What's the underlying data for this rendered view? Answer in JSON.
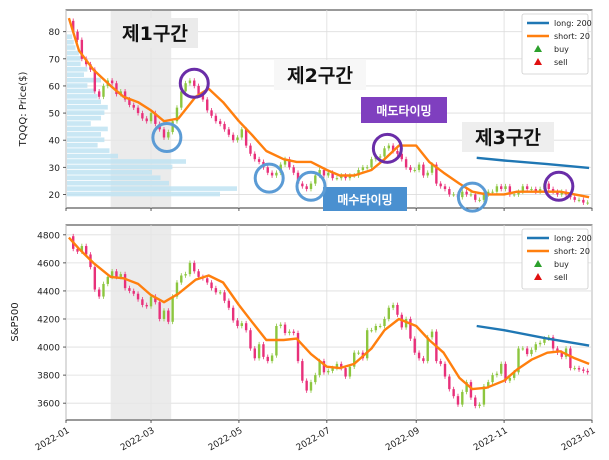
{
  "chart_data": [
    {
      "type": "line",
      "ylabel": "TQQQ: Price($)",
      "xlim": [
        "2022-01-01",
        "2023-01-01"
      ],
      "ylim": [
        15,
        88
      ],
      "yticks": [
        20,
        30,
        40,
        50,
        60,
        70,
        80
      ],
      "grid": true,
      "legend": {
        "placement": "top-right",
        "entries": [
          "long: 200",
          "short: 20",
          "buy",
          "sell"
        ]
      },
      "series": [
        {
          "name": "long: 200",
          "color": "#1f77b4",
          "x": [
            "2022-10-13",
            "2022-11-01",
            "2022-12-01",
            "2022-12-30"
          ],
          "values": [
            33.5,
            32.5,
            31.2,
            29.8
          ]
        },
        {
          "name": "short: 20",
          "color": "#ff7f0e",
          "x": [
            "2022-01-03",
            "2022-01-10",
            "2022-01-20",
            "2022-02-01",
            "2022-02-10",
            "2022-02-20",
            "2022-03-01",
            "2022-03-10",
            "2022-03-20",
            "2022-04-01",
            "2022-04-10",
            "2022-04-20",
            "2022-05-01",
            "2022-05-10",
            "2022-05-20",
            "2022-06-01",
            "2022-06-10",
            "2022-06-20",
            "2022-07-01",
            "2022-07-10",
            "2022-07-20",
            "2022-08-01",
            "2022-08-10",
            "2022-08-20",
            "2022-09-01",
            "2022-09-10",
            "2022-09-20",
            "2022-10-01",
            "2022-10-10",
            "2022-10-20",
            "2022-11-01",
            "2022-11-10",
            "2022-11-20",
            "2022-12-01",
            "2022-12-10",
            "2022-12-20",
            "2022-12-30"
          ],
          "values": [
            85,
            73,
            66,
            60,
            56,
            54,
            51,
            47,
            48,
            56,
            59,
            54,
            47,
            42,
            36,
            33,
            32,
            32,
            29,
            27,
            27,
            29,
            33,
            38,
            38,
            32,
            28,
            24,
            21,
            20,
            20,
            21,
            21,
            21,
            21,
            20,
            19
          ]
        }
      ],
      "price": {
        "color_up": "#8cc63f",
        "color_down": "#e8307a",
        "x": [
          "2022-01-03",
          "2022-01-06",
          "2022-01-09",
          "2022-01-12",
          "2022-01-15",
          "2022-01-18",
          "2022-01-21",
          "2022-01-24",
          "2022-01-27",
          "2022-01-30",
          "2022-02-02",
          "2022-02-05",
          "2022-02-08",
          "2022-02-11",
          "2022-02-14",
          "2022-02-17",
          "2022-02-20",
          "2022-02-23",
          "2022-02-26",
          "2022-03-01",
          "2022-03-04",
          "2022-03-07",
          "2022-03-10",
          "2022-03-13",
          "2022-03-16",
          "2022-03-19",
          "2022-03-22",
          "2022-03-25",
          "2022-03-28",
          "2022-03-31",
          "2022-04-03",
          "2022-04-06",
          "2022-04-09",
          "2022-04-12",
          "2022-04-15",
          "2022-04-18",
          "2022-04-21",
          "2022-04-24",
          "2022-04-27",
          "2022-04-30",
          "2022-05-03",
          "2022-05-06",
          "2022-05-09",
          "2022-05-12",
          "2022-05-15",
          "2022-05-18",
          "2022-05-21",
          "2022-05-24",
          "2022-05-27",
          "2022-05-30",
          "2022-06-02",
          "2022-06-05",
          "2022-06-08",
          "2022-06-11",
          "2022-06-14",
          "2022-06-17",
          "2022-06-20",
          "2022-06-23",
          "2022-06-26",
          "2022-06-29",
          "2022-07-02",
          "2022-07-05",
          "2022-07-08",
          "2022-07-11",
          "2022-07-14",
          "2022-07-17",
          "2022-07-20",
          "2022-07-23",
          "2022-07-26",
          "2022-07-29",
          "2022-08-01",
          "2022-08-04",
          "2022-08-07",
          "2022-08-10",
          "2022-08-13",
          "2022-08-16",
          "2022-08-19",
          "2022-08-22",
          "2022-08-25",
          "2022-08-28",
          "2022-08-31",
          "2022-09-03",
          "2022-09-06",
          "2022-09-09",
          "2022-09-12",
          "2022-09-15",
          "2022-09-18",
          "2022-09-21",
          "2022-09-24",
          "2022-09-27",
          "2022-09-30",
          "2022-10-03",
          "2022-10-06",
          "2022-10-09",
          "2022-10-12",
          "2022-10-15",
          "2022-10-18",
          "2022-10-21",
          "2022-10-24",
          "2022-10-27",
          "2022-10-30",
          "2022-11-02",
          "2022-11-05",
          "2022-11-08",
          "2022-11-11",
          "2022-11-14",
          "2022-11-17",
          "2022-11-20",
          "2022-11-23",
          "2022-11-26",
          "2022-11-29",
          "2022-12-02",
          "2022-12-05",
          "2022-12-08",
          "2022-12-11",
          "2022-12-14",
          "2022-12-17",
          "2022-12-20",
          "2022-12-23",
          "2022-12-26",
          "2022-12-29"
        ],
        "values": [
          84,
          80,
          77,
          70,
          68,
          66,
          58,
          56,
          60,
          62,
          61,
          57,
          58,
          55,
          53,
          52,
          50,
          48,
          47,
          50,
          46,
          44,
          41,
          43,
          47,
          52,
          58,
          61,
          62,
          60,
          57,
          55,
          51,
          49,
          47,
          46,
          44,
          42,
          40,
          41,
          44,
          38,
          35,
          33,
          32,
          30,
          28,
          27,
          28,
          31,
          33,
          30,
          28,
          24,
          23,
          22,
          24,
          27,
          29,
          27,
          28,
          26,
          26,
          27,
          26,
          27,
          27,
          29,
          30,
          30,
          33,
          34,
          34,
          37,
          38,
          36,
          35,
          33,
          30,
          29,
          29,
          31,
          27,
          28,
          31,
          24,
          23,
          22,
          20,
          20,
          19,
          21,
          20,
          20,
          18,
          18,
          20,
          21,
          21,
          23,
          22,
          23,
          20,
          20,
          21,
          23,
          22,
          22,
          21,
          22,
          24,
          22,
          21,
          20,
          21,
          20,
          19,
          18,
          18,
          17,
          17
        ]
      },
      "volume_profile": {
        "color": "#bfe3f2",
        "levels": [
          20,
          22,
          24,
          26,
          28,
          30,
          32,
          34,
          36,
          38,
          40,
          42,
          44,
          46,
          48,
          50,
          52,
          54,
          56,
          58,
          60,
          62,
          64,
          66,
          68,
          70,
          72,
          74,
          76,
          78
        ],
        "relative_volume": [
          0.9,
          1.0,
          0.6,
          0.55,
          0.5,
          0.62,
          0.7,
          0.3,
          0.25,
          0.18,
          0.22,
          0.2,
          0.24,
          0.14,
          0.2,
          0.22,
          0.24,
          0.2,
          0.18,
          0.16,
          0.12,
          0.2,
          0.1,
          0.12,
          0.08,
          0.08,
          0.07,
          0.05,
          0.04,
          0.03
        ]
      },
      "shaded_range": [
        "2022-02-01",
        "2022-03-15"
      ],
      "annotations": {
        "section1": "제1구간",
        "section2": "제2구간",
        "section3": "제3구간",
        "sell_timing": "매도타이밍",
        "buy_timing": "매수타이밍"
      },
      "buy_circles": [
        {
          "x": "2022-03-12",
          "y": 41
        },
        {
          "x": "2022-05-22",
          "y": 26
        },
        {
          "x": "2022-06-20",
          "y": 23
        },
        {
          "x": "2022-10-10",
          "y": 19
        }
      ],
      "sell_circles": [
        {
          "x": "2022-03-31",
          "y": 61
        },
        {
          "x": "2022-08-12",
          "y": 37
        },
        {
          "x": "2022-12-09",
          "y": 23
        }
      ]
    },
    {
      "type": "line",
      "ylabel": "S&P500",
      "xlim": [
        "2022-01-01",
        "2023-01-01"
      ],
      "ylim": [
        3480,
        4870
      ],
      "yticks": [
        3600,
        3800,
        4000,
        4200,
        4400,
        4600,
        4800
      ],
      "xticks": [
        "2022-01",
        "2022-03",
        "2022-05",
        "2022-07",
        "2022-09",
        "2022-11",
        "2023-01"
      ],
      "grid": true,
      "legend": {
        "placement": "top-right",
        "entries": [
          "long: 200",
          "short: 20",
          "buy",
          "sell"
        ]
      },
      "series": [
        {
          "name": "long: 200",
          "color": "#1f77b4",
          "x": [
            "2022-10-13",
            "2022-11-01",
            "2022-12-01",
            "2022-12-30"
          ],
          "values": [
            4150,
            4120,
            4060,
            4010
          ]
        },
        {
          "name": "short: 20",
          "color": "#ff7f0e",
          "x": [
            "2022-01-03",
            "2022-01-10",
            "2022-01-20",
            "2022-02-01",
            "2022-02-10",
            "2022-02-20",
            "2022-03-01",
            "2022-03-10",
            "2022-03-20",
            "2022-04-01",
            "2022-04-10",
            "2022-04-20",
            "2022-05-01",
            "2022-05-10",
            "2022-05-20",
            "2022-06-01",
            "2022-06-10",
            "2022-06-20",
            "2022-07-01",
            "2022-07-10",
            "2022-07-20",
            "2022-08-01",
            "2022-08-10",
            "2022-08-20",
            "2022-09-01",
            "2022-09-10",
            "2022-09-20",
            "2022-10-01",
            "2022-10-10",
            "2022-10-20",
            "2022-11-01",
            "2022-11-10",
            "2022-11-20",
            "2022-12-01",
            "2022-12-10",
            "2022-12-20",
            "2022-12-30"
          ],
          "values": [
            4780,
            4700,
            4600,
            4500,
            4490,
            4450,
            4370,
            4320,
            4380,
            4480,
            4510,
            4460,
            4300,
            4180,
            4050,
            4050,
            4060,
            3950,
            3860,
            3850,
            3880,
            3990,
            4120,
            4200,
            4150,
            4050,
            3960,
            3780,
            3700,
            3710,
            3760,
            3840,
            3910,
            3960,
            3970,
            3920,
            3880
          ]
        }
      ],
      "price": {
        "color_up": "#8cc63f",
        "color_down": "#e8307a",
        "x": [
          "2022-01-03",
          "2022-01-06",
          "2022-01-09",
          "2022-01-12",
          "2022-01-15",
          "2022-01-18",
          "2022-01-21",
          "2022-01-24",
          "2022-01-27",
          "2022-01-30",
          "2022-02-02",
          "2022-02-05",
          "2022-02-08",
          "2022-02-11",
          "2022-02-14",
          "2022-02-17",
          "2022-02-20",
          "2022-02-23",
          "2022-02-26",
          "2022-03-01",
          "2022-03-04",
          "2022-03-07",
          "2022-03-10",
          "2022-03-13",
          "2022-03-16",
          "2022-03-19",
          "2022-03-22",
          "2022-03-25",
          "2022-03-28",
          "2022-03-31",
          "2022-04-03",
          "2022-04-06",
          "2022-04-09",
          "2022-04-12",
          "2022-04-15",
          "2022-04-18",
          "2022-04-21",
          "2022-04-24",
          "2022-04-27",
          "2022-04-30",
          "2022-05-03",
          "2022-05-06",
          "2022-05-09",
          "2022-05-12",
          "2022-05-15",
          "2022-05-18",
          "2022-05-21",
          "2022-05-24",
          "2022-05-27",
          "2022-05-30",
          "2022-06-02",
          "2022-06-05",
          "2022-06-08",
          "2022-06-11",
          "2022-06-14",
          "2022-06-17",
          "2022-06-20",
          "2022-06-23",
          "2022-06-26",
          "2022-06-29",
          "2022-07-02",
          "2022-07-05",
          "2022-07-08",
          "2022-07-11",
          "2022-07-14",
          "2022-07-17",
          "2022-07-20",
          "2022-07-23",
          "2022-07-26",
          "2022-07-29",
          "2022-08-01",
          "2022-08-04",
          "2022-08-07",
          "2022-08-10",
          "2022-08-13",
          "2022-08-16",
          "2022-08-19",
          "2022-08-22",
          "2022-08-25",
          "2022-08-28",
          "2022-08-31",
          "2022-09-03",
          "2022-09-06",
          "2022-09-09",
          "2022-09-12",
          "2022-09-15",
          "2022-09-18",
          "2022-09-21",
          "2022-09-24",
          "2022-09-27",
          "2022-09-30",
          "2022-10-03",
          "2022-10-06",
          "2022-10-09",
          "2022-10-12",
          "2022-10-15",
          "2022-10-18",
          "2022-10-21",
          "2022-10-24",
          "2022-10-27",
          "2022-10-30",
          "2022-11-02",
          "2022-11-05",
          "2022-11-08",
          "2022-11-11",
          "2022-11-14",
          "2022-11-17",
          "2022-11-20",
          "2022-11-23",
          "2022-11-26",
          "2022-11-29",
          "2022-12-02",
          "2022-12-05",
          "2022-12-08",
          "2022-12-11",
          "2022-12-14",
          "2022-12-17",
          "2022-12-20",
          "2022-12-23",
          "2022-12-26",
          "2022-12-29"
        ],
        "values": [
          4790,
          4700,
          4680,
          4720,
          4660,
          4570,
          4410,
          4360,
          4450,
          4500,
          4540,
          4500,
          4520,
          4420,
          4400,
          4380,
          4340,
          4300,
          4290,
          4360,
          4320,
          4200,
          4260,
          4180,
          4360,
          4460,
          4510,
          4520,
          4600,
          4540,
          4500,
          4490,
          4460,
          4420,
          4390,
          4390,
          4330,
          4280,
          4190,
          4150,
          4170,
          4120,
          3990,
          3920,
          4020,
          3930,
          3900,
          3940,
          4150,
          4160,
          4100,
          4110,
          4100,
          3900,
          3760,
          3690,
          3750,
          3800,
          3900,
          3820,
          3830,
          3850,
          3880,
          3850,
          3790,
          3860,
          3960,
          3960,
          3920,
          4120,
          4120,
          4150,
          4150,
          4200,
          4280,
          4300,
          4230,
          4140,
          4200,
          4060,
          3960,
          3920,
          3900,
          4070,
          4110,
          3900,
          3880,
          3790,
          3700,
          3650,
          3590,
          3680,
          3750,
          3640,
          3580,
          3590,
          3720,
          3750,
          3800,
          3810,
          3880,
          3760,
          3780,
          3820,
          3990,
          3990,
          3950,
          3980,
          4020,
          4030,
          4060,
          4070,
          3990,
          3960,
          3930,
          3990,
          3850,
          3850,
          3840,
          3830,
          3820
        ]
      },
      "shaded_range": [
        "2022-02-01",
        "2022-03-15"
      ]
    }
  ]
}
